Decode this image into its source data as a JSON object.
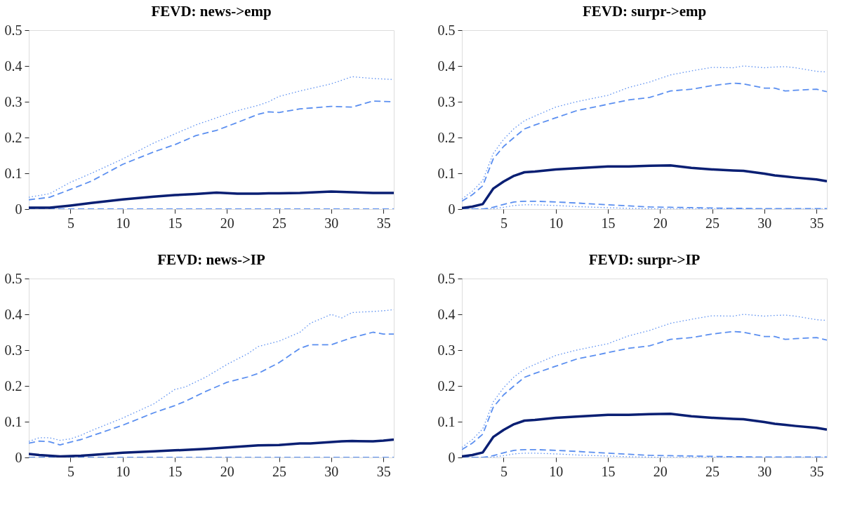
{
  "chart_data": [
    {
      "type": "line",
      "title": "FEVD: news->emp",
      "x": [
        1,
        3,
        5,
        7,
        10,
        13,
        15,
        17,
        19,
        21,
        23,
        24,
        25,
        27,
        30,
        32,
        34,
        36
      ],
      "xlim": [
        1,
        36
      ],
      "xticks": [
        5,
        10,
        15,
        20,
        25,
        30,
        35
      ],
      "ylim": [
        0,
        0.5
      ],
      "yticks": [
        0,
        0.1,
        0.2,
        0.3,
        0.4,
        0.5
      ],
      "grid": false,
      "series": [
        {
          "color": "#5b8ff0",
          "line_style": "dotted",
          "values": [
            0.033,
            0.043,
            0.075,
            0.1,
            0.14,
            0.185,
            0.21,
            0.235,
            0.255,
            0.275,
            0.29,
            0.3,
            0.315,
            0.33,
            0.35,
            0.37,
            0.365,
            0.362
          ]
        },
        {
          "color": "#5b8ff0",
          "line_style": "dashed",
          "values": [
            0.026,
            0.033,
            0.055,
            0.078,
            0.125,
            0.16,
            0.18,
            0.205,
            0.22,
            0.242,
            0.265,
            0.272,
            0.27,
            0.28,
            0.287,
            0.285,
            0.302,
            0.3
          ]
        },
        {
          "color": "#5b8ff0",
          "line_style": "dashed",
          "values": [
            0,
            0,
            0,
            0,
            0,
            0,
            0,
            0,
            0,
            0,
            0,
            0,
            0,
            0,
            0,
            0,
            0,
            0
          ]
        },
        {
          "color": "#0a1f73",
          "line_style": "solid",
          "values": [
            0.004,
            0.004,
            0.01,
            0.017,
            0.027,
            0.035,
            0.039,
            0.042,
            0.046,
            0.043,
            0.043,
            0.044,
            0.044,
            0.045,
            0.049,
            0.047,
            0.045,
            0.045
          ]
        }
      ]
    },
    {
      "type": "line",
      "title": "FEVD: surpr->emp",
      "x": [
        1,
        2,
        3,
        4,
        5,
        6,
        7,
        8,
        10,
        12,
        15,
        17,
        19,
        21,
        23,
        25,
        27,
        28,
        30,
        31,
        32,
        33,
        35,
        36
      ],
      "xlim": [
        1,
        36
      ],
      "xticks": [
        5,
        10,
        15,
        20,
        25,
        30,
        35
      ],
      "ylim": [
        0,
        0.5
      ],
      "yticks": [
        0,
        0.1,
        0.2,
        0.3,
        0.4,
        0.5
      ],
      "grid": false,
      "series": [
        {
          "color": "#5b8ff0",
          "line_style": "dotted",
          "values": [
            0.028,
            0.05,
            0.08,
            0.155,
            0.195,
            0.225,
            0.247,
            0.26,
            0.285,
            0.3,
            0.318,
            0.34,
            0.355,
            0.375,
            0.386,
            0.396,
            0.395,
            0.4,
            0.395,
            0.397,
            0.398,
            0.395,
            0.385,
            0.383
          ]
        },
        {
          "color": "#5b8ff0",
          "line_style": "dashed",
          "values": [
            0.022,
            0.04,
            0.065,
            0.14,
            0.175,
            0.2,
            0.224,
            0.235,
            0.255,
            0.275,
            0.293,
            0.305,
            0.312,
            0.33,
            0.335,
            0.345,
            0.352,
            0.35,
            0.338,
            0.338,
            0.33,
            0.332,
            0.335,
            0.328
          ]
        },
        {
          "color": "#5b8ff0",
          "line_style": "dotted",
          "values": [
            0,
            0,
            0,
            0.001,
            0.005,
            0.01,
            0.012,
            0.012,
            0.01,
            0.007,
            0.004,
            0.002,
            0.001,
            0,
            0,
            0,
            0,
            0,
            0,
            0,
            0,
            0,
            0,
            0
          ]
        },
        {
          "color": "#5b8ff0",
          "line_style": "dashed",
          "values": [
            0,
            0,
            0,
            0.005,
            0.013,
            0.02,
            0.022,
            0.022,
            0.02,
            0.017,
            0.012,
            0.009,
            0.006,
            0.005,
            0.004,
            0.003,
            0.002,
            0.002,
            0.001,
            0.001,
            0.001,
            0.001,
            0.001,
            0.001
          ]
        },
        {
          "color": "#0a1f73",
          "line_style": "solid",
          "values": [
            0.003,
            0.007,
            0.014,
            0.057,
            0.077,
            0.093,
            0.103,
            0.105,
            0.111,
            0.114,
            0.119,
            0.119,
            0.121,
            0.122,
            0.115,
            0.111,
            0.108,
            0.107,
            0.099,
            0.094,
            0.091,
            0.088,
            0.083,
            0.078
          ]
        }
      ]
    },
    {
      "type": "line",
      "title": "FEVD: news->IP",
      "x": [
        1,
        2,
        3,
        4,
        5,
        6,
        7,
        10,
        13,
        15,
        16,
        18,
        20,
        22,
        23,
        25,
        27,
        28,
        30,
        31,
        32,
        34,
        35,
        36
      ],
      "xlim": [
        1,
        36
      ],
      "xticks": [
        5,
        10,
        15,
        20,
        25,
        30,
        35
      ],
      "ylim": [
        0,
        0.5
      ],
      "yticks": [
        0,
        0.1,
        0.2,
        0.3,
        0.4,
        0.5
      ],
      "grid": false,
      "series": [
        {
          "color": "#5b8ff0",
          "line_style": "dotted",
          "values": [
            0.045,
            0.055,
            0.055,
            0.048,
            0.052,
            0.062,
            0.075,
            0.11,
            0.15,
            0.19,
            0.197,
            0.225,
            0.26,
            0.29,
            0.31,
            0.325,
            0.35,
            0.375,
            0.4,
            0.39,
            0.405,
            0.408,
            0.41,
            0.413
          ]
        },
        {
          "color": "#5b8ff0",
          "line_style": "dashed",
          "values": [
            0.04,
            0.046,
            0.044,
            0.035,
            0.043,
            0.05,
            0.06,
            0.09,
            0.125,
            0.145,
            0.157,
            0.185,
            0.21,
            0.225,
            0.235,
            0.265,
            0.305,
            0.315,
            0.315,
            0.325,
            0.335,
            0.35,
            0.345,
            0.345
          ]
        },
        {
          "color": "#5b8ff0",
          "line_style": "dashed",
          "values": [
            0,
            0,
            0,
            0,
            0,
            0,
            0,
            0,
            0,
            0,
            0,
            0,
            0,
            0,
            0,
            0,
            0,
            0,
            0,
            0,
            0,
            0,
            0,
            0
          ]
        },
        {
          "color": "#0a1f73",
          "line_style": "solid",
          "values": [
            0.01,
            0.007,
            0.005,
            0.003,
            0.004,
            0.005,
            0.007,
            0.013,
            0.017,
            0.02,
            0.021,
            0.024,
            0.028,
            0.032,
            0.034,
            0.035,
            0.039,
            0.039,
            0.043,
            0.045,
            0.046,
            0.045,
            0.047,
            0.05
          ]
        }
      ]
    },
    {
      "type": "line",
      "title": "FEVD: surpr->IP",
      "x": [
        1,
        2,
        3,
        4,
        5,
        6,
        7,
        8,
        10,
        12,
        15,
        17,
        19,
        21,
        23,
        25,
        27,
        28,
        30,
        31,
        32,
        33,
        35,
        36
      ],
      "xlim": [
        1,
        36
      ],
      "xticks": [
        5,
        10,
        15,
        20,
        25,
        30,
        35
      ],
      "ylim": [
        0,
        0.5
      ],
      "yticks": [
        0,
        0.1,
        0.2,
        0.3,
        0.4,
        0.5
      ],
      "grid": false,
      "series": [
        {
          "color": "#5b8ff0",
          "line_style": "dotted",
          "values": [
            0.028,
            0.05,
            0.08,
            0.155,
            0.195,
            0.225,
            0.247,
            0.26,
            0.285,
            0.3,
            0.318,
            0.34,
            0.355,
            0.375,
            0.386,
            0.396,
            0.395,
            0.4,
            0.395,
            0.397,
            0.398,
            0.395,
            0.385,
            0.383
          ]
        },
        {
          "color": "#5b8ff0",
          "line_style": "dashed",
          "values": [
            0.022,
            0.04,
            0.065,
            0.14,
            0.175,
            0.2,
            0.224,
            0.235,
            0.255,
            0.275,
            0.293,
            0.305,
            0.312,
            0.33,
            0.335,
            0.345,
            0.352,
            0.35,
            0.338,
            0.338,
            0.33,
            0.332,
            0.335,
            0.328
          ]
        },
        {
          "color": "#5b8ff0",
          "line_style": "dotted",
          "values": [
            0,
            0,
            0,
            0.001,
            0.005,
            0.01,
            0.012,
            0.012,
            0.01,
            0.007,
            0.004,
            0.002,
            0.001,
            0,
            0,
            0,
            0,
            0,
            0,
            0,
            0,
            0,
            0,
            0
          ]
        },
        {
          "color": "#5b8ff0",
          "line_style": "dashed",
          "values": [
            0,
            0,
            0,
            0.005,
            0.013,
            0.02,
            0.022,
            0.022,
            0.02,
            0.017,
            0.012,
            0.009,
            0.006,
            0.005,
            0.004,
            0.003,
            0.002,
            0.002,
            0.001,
            0.001,
            0.001,
            0.001,
            0.001,
            0.001
          ]
        },
        {
          "color": "#0a1f73",
          "line_style": "solid",
          "values": [
            0.003,
            0.007,
            0.014,
            0.057,
            0.077,
            0.093,
            0.103,
            0.105,
            0.111,
            0.114,
            0.119,
            0.119,
            0.121,
            0.122,
            0.115,
            0.111,
            0.108,
            0.107,
            0.099,
            0.094,
            0.091,
            0.088,
            0.083,
            0.078
          ]
        }
      ]
    }
  ]
}
